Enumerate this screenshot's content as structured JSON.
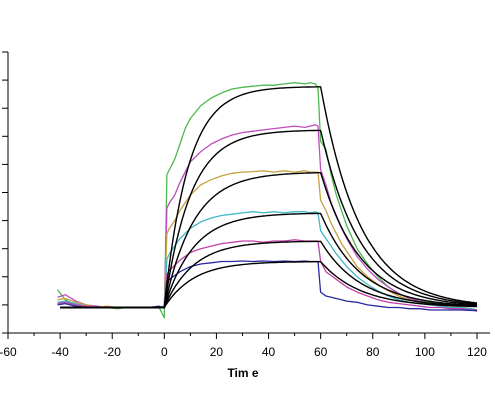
{
  "chart_data": {
    "type": "line",
    "title": "",
    "xlabel": "Tim e",
    "ylabel": "",
    "xlim": [
      -60,
      125
    ],
    "ylim": [
      -1,
      10
    ],
    "x_ticks": [
      -60,
      -40,
      -20,
      0,
      20,
      40,
      60,
      80,
      100,
      120
    ],
    "x_tick_labels": [
      "-60",
      "-40",
      "-20",
      "0",
      "20",
      "40",
      "60",
      "80",
      "100",
      "120"
    ],
    "y_tick_count": 11,
    "y_tick_labels_visible": false,
    "grid": false,
    "legend": "none",
    "fit_color": "#000000",
    "series": [
      {
        "color": "#4fb84f",
        "x": [
          -41,
          -38,
          -34,
          -30,
          -26,
          -22,
          -18,
          -14,
          -10,
          -6,
          -2,
          0,
          1,
          2,
          4,
          6,
          8,
          10,
          14,
          18,
          22,
          26,
          30,
          34,
          38,
          42,
          46,
          50,
          54,
          56,
          58,
          59,
          60,
          62,
          64,
          66,
          68,
          70,
          74,
          78,
          82,
          86,
          90,
          94,
          98,
          102,
          106,
          110,
          114,
          118,
          120
        ],
        "y": [
          0.7,
          0.3,
          0.1,
          0.0,
          0.05,
          0.0,
          -0.05,
          0.0,
          0.0,
          0.0,
          0.0,
          -0.4,
          5.2,
          5.4,
          5.8,
          6.4,
          7.0,
          7.4,
          7.9,
          8.2,
          8.4,
          8.55,
          8.62,
          8.66,
          8.7,
          8.7,
          8.75,
          8.8,
          8.75,
          8.8,
          8.75,
          8.6,
          6.5,
          6.2,
          5.2,
          4.4,
          3.8,
          3.2,
          2.3,
          1.7,
          1.2,
          0.8,
          0.55,
          0.35,
          0.25,
          0.2,
          0.15,
          0.05,
          0.0,
          -0.1,
          -0.15
        ]
      },
      {
        "color": "#c04cc0",
        "x": [
          -41,
          -38,
          -34,
          -30,
          -26,
          -22,
          -18,
          -14,
          -10,
          -6,
          -2,
          0,
          1,
          2,
          4,
          6,
          8,
          10,
          14,
          18,
          22,
          26,
          30,
          34,
          38,
          42,
          46,
          50,
          54,
          56,
          58,
          59,
          60,
          62,
          64,
          66,
          68,
          70,
          74,
          78,
          82,
          86,
          90,
          94,
          98,
          102,
          106,
          110,
          114,
          118,
          120
        ],
        "y": [
          0.4,
          0.5,
          0.25,
          0.1,
          0.05,
          0.0,
          0.0,
          0.0,
          0.0,
          0.0,
          0.0,
          0.0,
          3.9,
          4.1,
          4.4,
          4.9,
          5.3,
          5.7,
          6.1,
          6.4,
          6.6,
          6.75,
          6.85,
          6.9,
          6.95,
          7.0,
          7.05,
          7.1,
          7.05,
          7.1,
          7.15,
          7.1,
          5.4,
          4.8,
          4.1,
          3.6,
          3.1,
          2.7,
          2.0,
          1.5,
          1.1,
          0.8,
          0.55,
          0.35,
          0.25,
          0.15,
          0.1,
          0.05,
          0.0,
          -0.1,
          -0.15
        ]
      },
      {
        "color": "#c8a040",
        "x": [
          -41,
          -38,
          -34,
          -30,
          -26,
          -22,
          -18,
          -14,
          -10,
          -6,
          -2,
          0,
          1,
          2,
          4,
          6,
          8,
          10,
          14,
          18,
          22,
          26,
          30,
          34,
          38,
          42,
          46,
          50,
          54,
          56,
          58,
          59,
          60,
          62,
          64,
          66,
          68,
          70,
          74,
          78,
          82,
          86,
          90,
          94,
          98,
          102,
          106,
          110,
          114,
          118,
          120
        ],
        "y": [
          0.3,
          0.35,
          0.2,
          0.1,
          0.0,
          0.05,
          0.0,
          0.0,
          0.0,
          0.0,
          0.0,
          0.05,
          2.9,
          3.1,
          3.4,
          3.8,
          4.1,
          4.4,
          4.8,
          5.0,
          5.15,
          5.25,
          5.3,
          5.32,
          5.35,
          5.3,
          5.35,
          5.3,
          5.35,
          5.3,
          5.3,
          5.3,
          4.2,
          3.8,
          3.3,
          2.9,
          2.5,
          2.2,
          1.6,
          1.2,
          0.9,
          0.65,
          0.45,
          0.3,
          0.2,
          0.15,
          0.1,
          0.05,
          0.0,
          -0.05,
          -0.1
        ]
      },
      {
        "color": "#40b8c8",
        "x": [
          -41,
          -38,
          -34,
          -30,
          -26,
          -22,
          -18,
          -14,
          -10,
          -6,
          -2,
          0,
          1,
          2,
          4,
          6,
          8,
          10,
          14,
          18,
          22,
          26,
          30,
          34,
          38,
          42,
          46,
          50,
          54,
          56,
          58,
          59,
          60,
          62,
          64,
          66,
          68,
          70,
          74,
          78,
          82,
          86,
          90,
          94,
          98,
          102,
          106,
          110,
          114,
          118,
          120
        ],
        "y": [
          0.2,
          0.25,
          0.15,
          0.05,
          0.0,
          0.0,
          0.0,
          0.0,
          0.0,
          0.0,
          0.0,
          0.05,
          1.9,
          2.1,
          2.4,
          2.7,
          2.9,
          3.1,
          3.35,
          3.5,
          3.6,
          3.65,
          3.7,
          3.75,
          3.7,
          3.75,
          3.7,
          3.75,
          3.75,
          3.7,
          3.75,
          3.7,
          3.0,
          2.7,
          2.4,
          2.1,
          1.85,
          1.6,
          1.2,
          0.9,
          0.65,
          0.45,
          0.3,
          0.2,
          0.15,
          0.1,
          0.05,
          0.0,
          0.0,
          -0.05,
          -0.1
        ]
      },
      {
        "color": "#c040a8",
        "x": [
          -41,
          -38,
          -34,
          -30,
          -26,
          -22,
          -18,
          -14,
          -10,
          -6,
          -2,
          0,
          1,
          2,
          4,
          6,
          8,
          10,
          14,
          18,
          22,
          26,
          30,
          34,
          38,
          42,
          46,
          50,
          54,
          56,
          58,
          59,
          60,
          62,
          64,
          66,
          68,
          70,
          74,
          78,
          82,
          86,
          90,
          94,
          98,
          102,
          106,
          110,
          114,
          118,
          120
        ],
        "y": [
          0.15,
          0.2,
          0.1,
          0.05,
          0.0,
          0.0,
          0.0,
          0.0,
          0.0,
          0.0,
          0.0,
          0.0,
          1.3,
          1.45,
          1.65,
          1.85,
          2.0,
          2.15,
          2.3,
          2.4,
          2.5,
          2.55,
          2.6,
          2.6,
          2.55,
          2.6,
          2.6,
          2.65,
          2.6,
          2.6,
          2.6,
          2.6,
          1.8,
          1.4,
          1.25,
          1.1,
          0.95,
          0.8,
          0.6,
          0.45,
          0.3,
          0.2,
          0.15,
          0.1,
          0.05,
          0.0,
          0.0,
          -0.05,
          -0.05,
          -0.1,
          -0.1
        ]
      },
      {
        "color": "#2828a0",
        "x": [
          -41,
          -38,
          -34,
          -30,
          -26,
          -22,
          -18,
          -14,
          -10,
          -6,
          -2,
          0,
          1,
          2,
          4,
          6,
          8,
          10,
          14,
          18,
          22,
          26,
          30,
          34,
          38,
          42,
          46,
          50,
          54,
          56,
          58,
          59,
          60,
          62,
          64,
          66,
          68,
          70,
          74,
          78,
          82,
          86,
          90,
          94,
          98,
          102,
          106,
          110,
          114,
          118,
          120
        ],
        "y": [
          0.1,
          0.15,
          0.05,
          0.0,
          0.0,
          0.0,
          0.0,
          0.0,
          0.0,
          0.0,
          0.05,
          0.0,
          1.0,
          1.1,
          1.25,
          1.4,
          1.5,
          1.6,
          1.7,
          1.75,
          1.8,
          1.8,
          1.82,
          1.8,
          1.82,
          1.8,
          1.82,
          1.8,
          1.82,
          1.8,
          1.8,
          1.8,
          0.6,
          0.45,
          0.4,
          0.35,
          0.3,
          0.25,
          0.2,
          0.1,
          0.05,
          0.0,
          0.0,
          -0.05,
          -0.05,
          -0.1,
          -0.1,
          -0.1,
          -0.1,
          -0.12,
          -0.12
        ]
      }
    ],
    "fits": [
      {
        "plateau": 8.65,
        "k_on": 0.11,
        "k_off": 0.065
      },
      {
        "plateau": 6.95,
        "k_on": 0.1,
        "k_off": 0.065
      },
      {
        "plateau": 5.3,
        "k_on": 0.09,
        "k_off": 0.065
      },
      {
        "plateau": 3.7,
        "k_on": 0.09,
        "k_off": 0.065
      },
      {
        "plateau": 2.6,
        "k_on": 0.09,
        "k_off": 0.065
      },
      {
        "plateau": 1.8,
        "k_on": 0.09,
        "k_off": 0.065
      }
    ]
  }
}
